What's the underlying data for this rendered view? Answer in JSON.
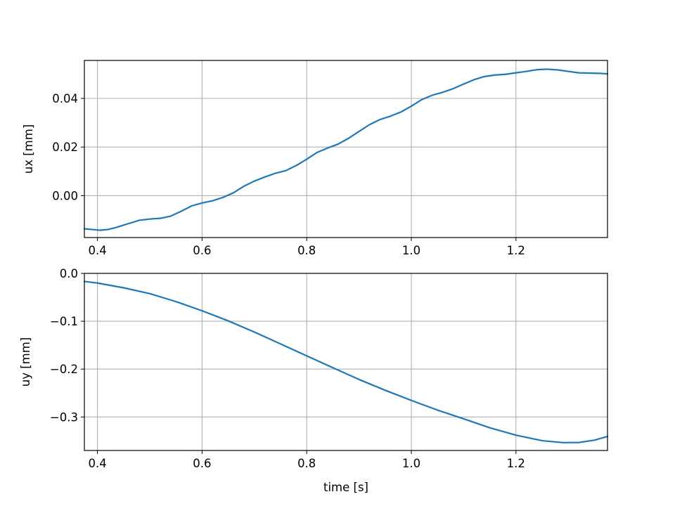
{
  "chart_data": [
    {
      "type": "line",
      "title": "",
      "xlabel": "",
      "ylabel": "ux [mm]",
      "xlim": [
        0.375,
        1.375
      ],
      "ylim": [
        -0.0172,
        0.0556
      ],
      "grid": true,
      "x_ticks": [
        0.4,
        0.6,
        0.8,
        1.0,
        1.2
      ],
      "x_tick_labels": [
        "0.4",
        "0.6",
        "0.8",
        "1.0",
        "1.2"
      ],
      "y_ticks": [
        0.0,
        0.02,
        0.04
      ],
      "y_tick_labels": [
        "0.00",
        "0.02",
        "0.04"
      ],
      "color": "#1f77b4",
      "series": [
        {
          "x": [
            0.375,
            0.39,
            0.405,
            0.42,
            0.435,
            0.45,
            0.465,
            0.48,
            0.5,
            0.52,
            0.54,
            0.56,
            0.58,
            0.6,
            0.62,
            0.64,
            0.66,
            0.68,
            0.7,
            0.72,
            0.74,
            0.76,
            0.78,
            0.8,
            0.82,
            0.84,
            0.86,
            0.88,
            0.9,
            0.92,
            0.94,
            0.96,
            0.98,
            1.0,
            1.02,
            1.04,
            1.06,
            1.08,
            1.1,
            1.12,
            1.14,
            1.16,
            1.18,
            1.2,
            1.22,
            1.24,
            1.26,
            1.28,
            1.3,
            1.32,
            1.34,
            1.36,
            1.375
          ],
          "y": [
            -0.0136,
            -0.0139,
            -0.0142,
            -0.0139,
            -0.0131,
            -0.0121,
            -0.0111,
            -0.0101,
            -0.0096,
            -0.0093,
            -0.0084,
            -0.0064,
            -0.0042,
            -0.003,
            -0.0021,
            -0.0007,
            0.0012,
            0.0039,
            0.006,
            0.0077,
            0.0092,
            0.0103,
            0.0124,
            0.015,
            0.0178,
            0.0196,
            0.0212,
            0.0236,
            0.0264,
            0.0292,
            0.0313,
            0.0327,
            0.0344,
            0.0368,
            0.0395,
            0.0413,
            0.0425,
            0.044,
            0.0459,
            0.0477,
            0.049,
            0.0496,
            0.0499,
            0.0505,
            0.0511,
            0.0518,
            0.052,
            0.0517,
            0.0511,
            0.0505,
            0.0504,
            0.0503,
            0.0501
          ]
        }
      ]
    },
    {
      "type": "line",
      "title": "",
      "xlabel": "time [s]",
      "ylabel": "uy [mm]",
      "xlim": [
        0.375,
        1.375
      ],
      "ylim": [
        -0.37,
        0.0
      ],
      "grid": true,
      "x_ticks": [
        0.4,
        0.6,
        0.8,
        1.0,
        1.2
      ],
      "x_tick_labels": [
        "0.4",
        "0.6",
        "0.8",
        "1.0",
        "1.2"
      ],
      "y_ticks": [
        0.0,
        -0.1,
        -0.2,
        -0.3
      ],
      "y_tick_labels": [
        "0.0",
        "−0.1",
        "−0.2",
        "−0.3"
      ],
      "color": "#1f77b4",
      "series": [
        {
          "x": [
            0.375,
            0.4,
            0.45,
            0.5,
            0.55,
            0.6,
            0.65,
            0.7,
            0.75,
            0.8,
            0.85,
            0.9,
            0.95,
            1.0,
            1.05,
            1.1,
            1.15,
            1.2,
            1.25,
            1.29,
            1.32,
            1.35,
            1.375
          ],
          "y": [
            -0.0168,
            -0.0202,
            -0.0301,
            -0.0423,
            -0.0589,
            -0.0782,
            -0.0992,
            -0.1226,
            -0.1473,
            -0.1723,
            -0.1972,
            -0.2216,
            -0.2442,
            -0.2654,
            -0.2856,
            -0.3038,
            -0.3226,
            -0.3379,
            -0.3495,
            -0.3536,
            -0.3533,
            -0.3484,
            -0.3407
          ]
        }
      ]
    }
  ]
}
